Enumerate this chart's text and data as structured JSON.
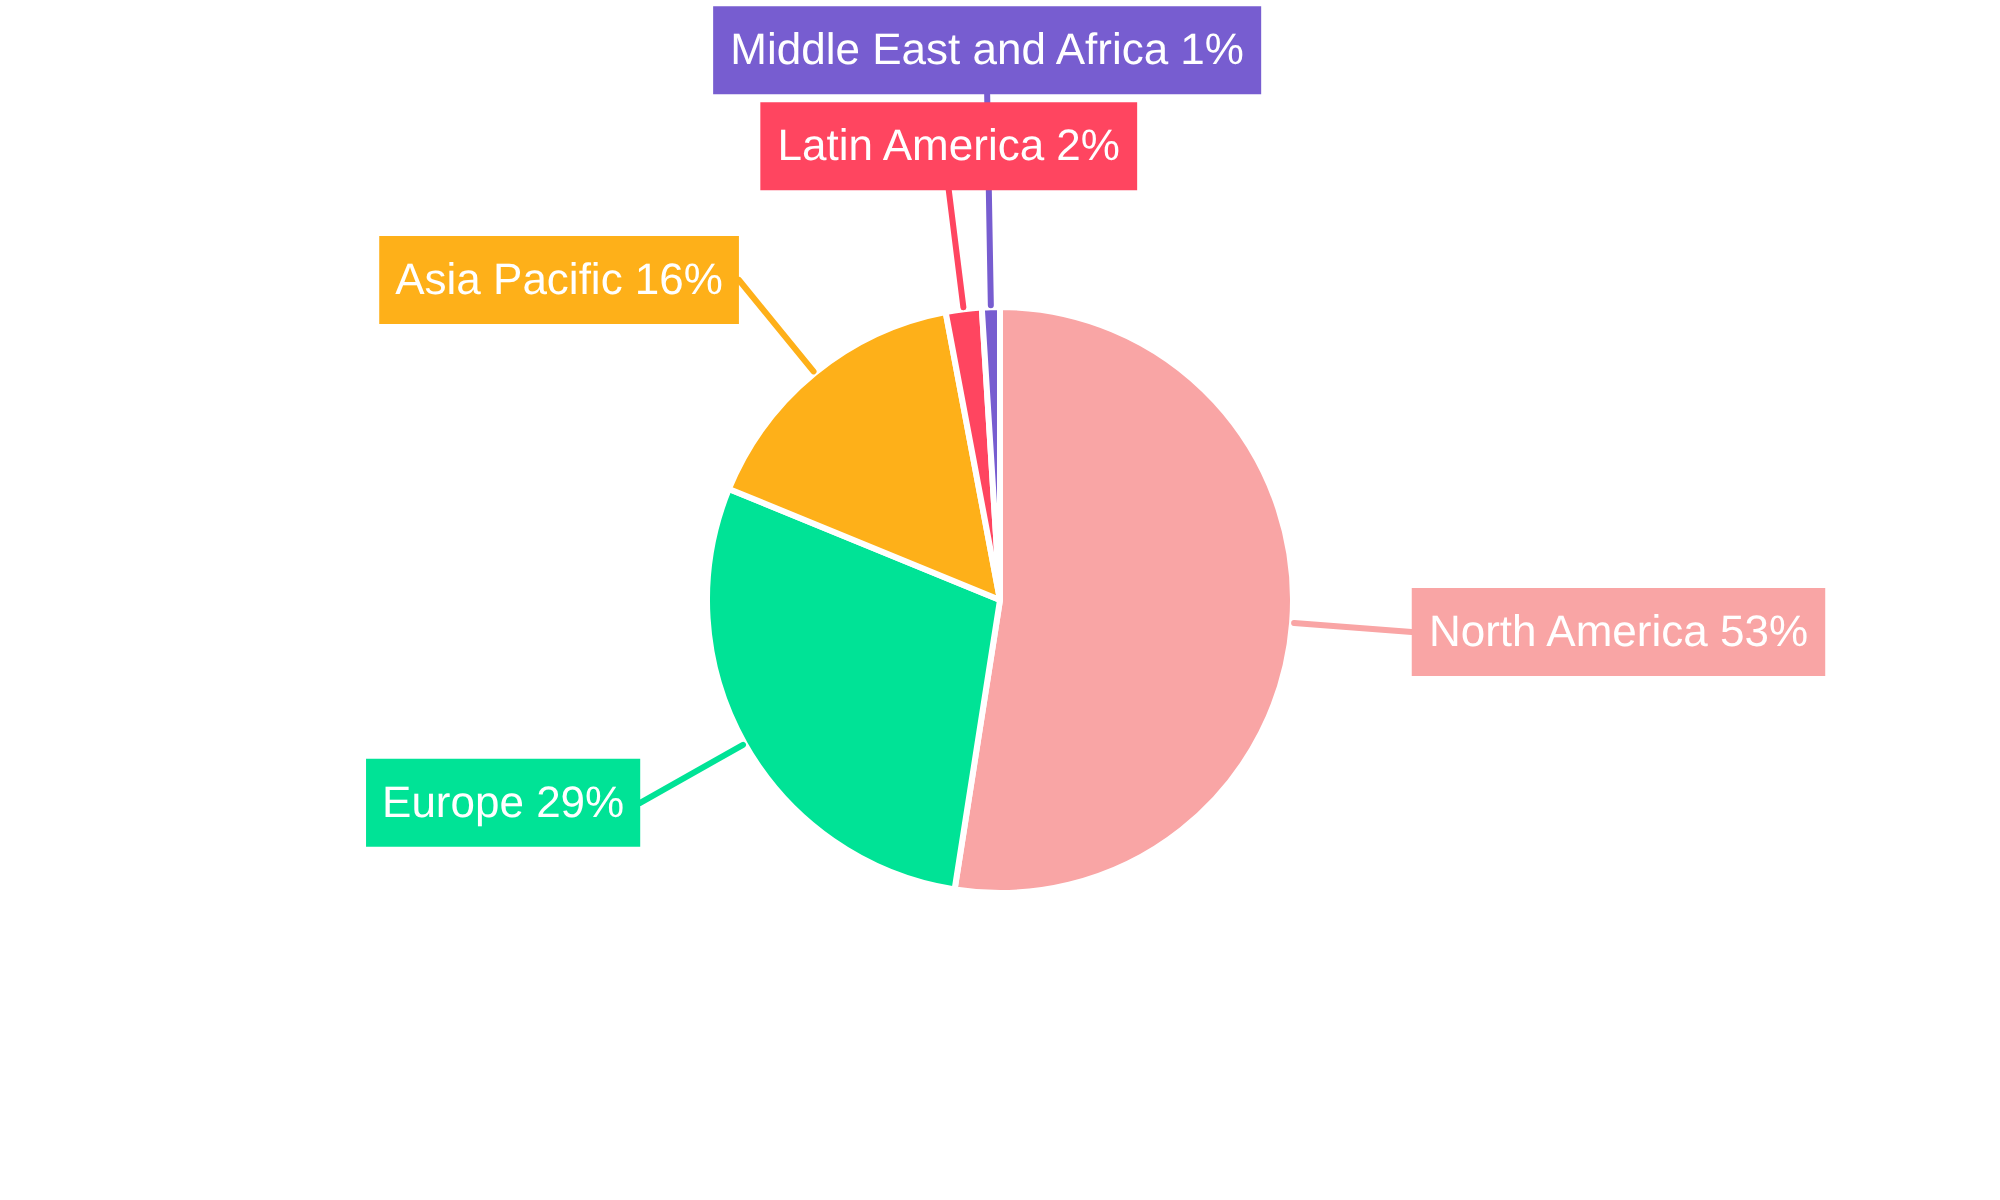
{
  "chart_data": {
    "type": "pie",
    "categories": [
      "North America",
      "Europe",
      "Asia Pacific",
      "Latin America",
      "Middle East and Africa"
    ],
    "values": [
      53,
      29,
      16,
      2,
      1
    ],
    "value_labels": [
      "53%",
      "29%",
      "16%",
      "2%",
      "1%"
    ],
    "colors": [
      "#f9a5a5",
      "#00e396",
      "#feb019",
      "#ff4560",
      "#775dd0"
    ],
    "legend": false
  }
}
